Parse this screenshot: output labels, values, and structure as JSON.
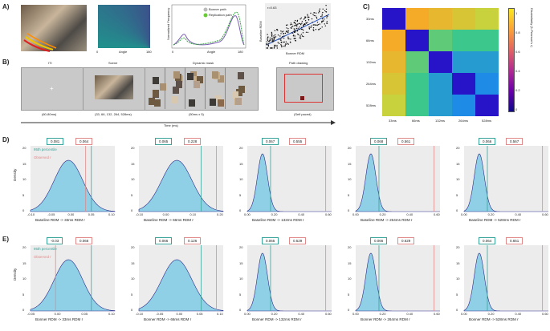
{
  "panels": {
    "A": "A)",
    "B": "B)",
    "C": "C)",
    "D": "D)",
    "E": "E)"
  },
  "panelA": {
    "angle_ticks": [
      "0",
      "180"
    ],
    "angle_label": "Angle",
    "freq_ylabel": "Normalized Frequency",
    "freq_xlabel": "Angle",
    "freq_ticks": [
      "0",
      "180"
    ],
    "legend": [
      "Bonner path",
      "Replication path"
    ],
    "scatter_r": "r=0.63",
    "scatter_ylabel": "Baseline RDM",
    "scatter_xlabel": "Bonner RDM"
  },
  "panelB": {
    "steps": [
      "ITI",
      "Scene",
      "Dynamic mask",
      "Path drawing"
    ],
    "durations": [
      "(60-80ms)",
      "(33, 66, 132, 264, 528ms)",
      "(50ms x 5)",
      "(Self paced)"
    ],
    "time_label": "Time (ms)"
  },
  "panelC": {
    "labels": [
      "33ms",
      "66ms",
      "132ms",
      "264ms",
      "528ms"
    ],
    "colorbar_label": "Dissimilarity (1-Pearson's r)",
    "colorbar_ticks": [
      "1",
      "0.8",
      "0.6",
      "0.4",
      "0.2",
      "0"
    ]
  },
  "legend_labels": {
    "percentile": "95th percentile",
    "observed": "Observed r"
  },
  "density_label": "Density",
  "rowD": [
    {
      "p95": "0.081",
      "obs": "0.064",
      "xlabel": "Baseline RDM -> 33ms RDM r",
      "xticks": [
        "-0.10",
        "-0.05",
        "0.00",
        "0.05",
        "0.10"
      ],
      "yticks": [
        "20",
        "15",
        "10",
        "5",
        "0"
      ]
    },
    {
      "p95": "0.065",
      "obs": "0.228",
      "xlabel": "Baseline RDM -> 66ms RDM r",
      "xticks": [
        "-0.10",
        "0.00",
        "0.10",
        "0.20"
      ],
      "yticks": [
        "20",
        "15",
        "10",
        "5",
        "0"
      ]
    },
    {
      "p95": "0.067",
      "obs": "0.555",
      "xlabel": "Baseline RDM -> 132ms RDM r",
      "xticks": [
        "0.00",
        "0.20",
        "0.40",
        "0.60"
      ],
      "yticks": [
        "20",
        "15",
        "10",
        "5",
        "0"
      ]
    },
    {
      "p95": "0.068",
      "obs": "0.561",
      "xlabel": "Baseline RDM -> 264ms RDM r",
      "xticks": [
        "0.00",
        "0.20",
        "0.40",
        "0.60"
      ],
      "yticks": [
        "20",
        "15",
        "10",
        "5",
        "0"
      ]
    },
    {
      "p95": "0.066",
      "obs": "0.567",
      "xlabel": "Baseline RDM -> 528ms RDM r",
      "xticks": [
        "0.00",
        "0.20",
        "0.40",
        "0.60"
      ],
      "yticks": [
        "20",
        "15",
        "10",
        "5",
        "0"
      ]
    }
  ],
  "rowE": [
    {
      "p95": "-0.03",
      "obs": "0.066",
      "xlabel": "Bonner RDM -> 33ms RDM r",
      "xticks": [
        "-0.05",
        "0.00",
        "0.05",
        "0.10"
      ],
      "yticks": [
        "20",
        "15",
        "10",
        "5",
        "0"
      ]
    },
    {
      "p95": "0.066",
      "obs": "0.126",
      "xlabel": "Bonner RDM -> 66ms RDM r",
      "xticks": [
        "-0.10",
        "-0.05",
        "0.00",
        "0.05",
        "0.10"
      ],
      "yticks": [
        "20",
        "15",
        "10",
        "5",
        "0"
      ]
    },
    {
      "p95": "0.065",
      "obs": "0.529",
      "xlabel": "Bonner RDM -> 132ms RDM r",
      "xticks": [
        "0.00",
        "0.20",
        "0.40",
        "0.60"
      ],
      "yticks": [
        "20",
        "15",
        "10",
        "5",
        "0"
      ]
    },
    {
      "p95": "0.066",
      "obs": "0.629",
      "xlabel": "Bonner RDM -> 264ms RDM r",
      "xticks": [
        "0.00",
        "0.20",
        "0.40",
        "0.60"
      ],
      "yticks": [
        "20",
        "15",
        "10",
        "5",
        "0"
      ]
    },
    {
      "p95": "0.064",
      "obs": "0.651",
      "xlabel": "Bonner RDM -> 528ms RDM r",
      "xticks": [
        "0.00",
        "0.20",
        "0.40",
        "0.60"
      ],
      "yticks": [
        "20",
        "15",
        "10",
        "5",
        "0"
      ]
    }
  ],
  "chart_data": {
    "type": "heatmap",
    "title": "",
    "xlabels": [
      "33ms",
      "66ms",
      "132ms",
      "264ms",
      "528ms"
    ],
    "ylabels": [
      "33ms",
      "66ms",
      "132ms",
      "264ms",
      "528ms"
    ],
    "colorbar_label": "Dissimilarity (1-Pearson's r)",
    "range": [
      0,
      1
    ],
    "values": [
      [
        0.0,
        0.9,
        0.85,
        0.8,
        0.75
      ],
      [
        0.9,
        0.0,
        0.6,
        0.55,
        0.55
      ],
      [
        0.85,
        0.6,
        0.0,
        0.4,
        0.4
      ],
      [
        0.8,
        0.55,
        0.4,
        0.0,
        0.35
      ],
      [
        0.75,
        0.55,
        0.4,
        0.35,
        0.0
      ]
    ]
  }
}
